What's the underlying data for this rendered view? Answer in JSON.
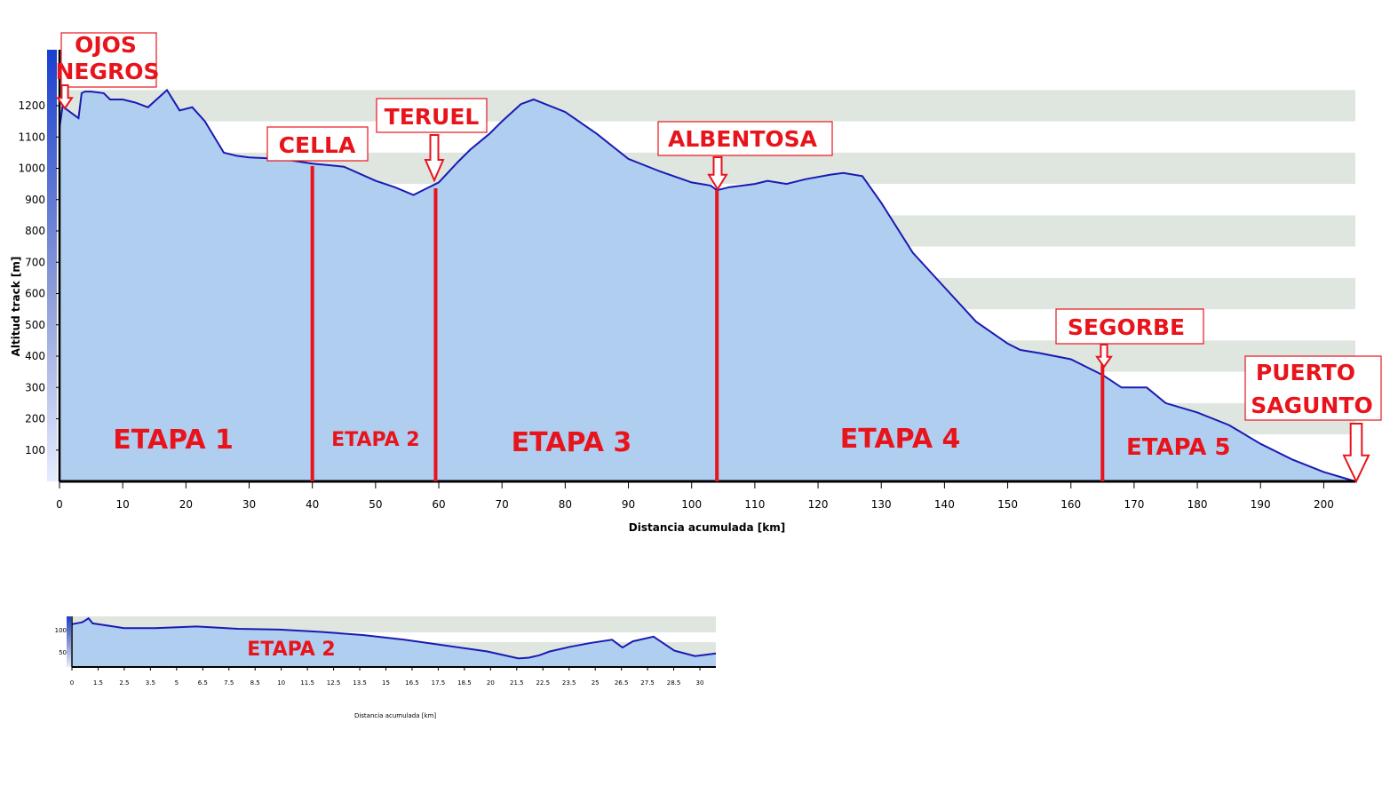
{
  "chart_data": [
    {
      "type": "area",
      "xlabel": "Distancia acumulada [km]",
      "ylabel": "Altitud track [m]",
      "xlim": [
        0,
        205
      ],
      "ylim": [
        0,
        1300
      ],
      "xticks": [
        0,
        10,
        20,
        30,
        40,
        50,
        60,
        70,
        80,
        90,
        100,
        110,
        120,
        130,
        140,
        150,
        160,
        170,
        180,
        190,
        200
      ],
      "yticks": [
        100,
        200,
        300,
        400,
        500,
        600,
        700,
        800,
        900,
        1000,
        1100,
        1200
      ],
      "x": [
        0,
        0.5,
        1,
        2,
        3,
        3.5,
        4,
        5,
        7,
        8,
        10,
        12,
        14,
        17,
        19,
        21,
        23,
        26,
        28,
        30,
        35,
        40,
        45,
        50,
        53,
        56,
        58,
        60,
        63,
        65,
        68,
        70,
        73,
        75,
        80,
        85,
        90,
        95,
        100,
        103,
        104,
        106,
        110,
        112,
        115,
        118,
        122,
        124,
        127,
        130,
        135,
        140,
        145,
        150,
        152,
        155,
        160,
        163,
        165,
        168,
        171,
        172,
        175,
        180,
        185,
        190,
        195,
        200,
        205
      ],
      "y": [
        1130,
        1200,
        1190,
        1175,
        1160,
        1240,
        1245,
        1245,
        1240,
        1220,
        1220,
        1210,
        1195,
        1250,
        1185,
        1195,
        1150,
        1050,
        1040,
        1035,
        1030,
        1015,
        1005,
        960,
        940,
        915,
        935,
        955,
        1020,
        1060,
        1110,
        1150,
        1205,
        1220,
        1180,
        1110,
        1030,
        990,
        955,
        945,
        930,
        940,
        950,
        960,
        950,
        965,
        980,
        985,
        975,
        890,
        730,
        620,
        510,
        440,
        420,
        410,
        390,
        360,
        340,
        300,
        300,
        300,
        250,
        220,
        180,
        120,
        70,
        30,
        0
      ],
      "series": [
        {
          "name": "ETAPA 1",
          "x": 18
        },
        {
          "name": "ETAPA 2",
          "x": 50
        },
        {
          "name": "ETAPA 3",
          "x": 81
        },
        {
          "name": "ETAPA 4",
          "x": 133
        },
        {
          "name": "ETAPA 5",
          "x": 177
        }
      ],
      "stage_boundaries_km": [
        40,
        59.5,
        104,
        165
      ],
      "annotations": [
        {
          "text": "OJOS NEGROS",
          "line1": "OJOS",
          "line2": "NEGROS",
          "km": 0.5
        },
        {
          "text": "CELLA",
          "km": 40
        },
        {
          "text": "TERUEL",
          "km": 59.5
        },
        {
          "text": "ALBENTOSA",
          "km": 104
        },
        {
          "text": "SEGORBE",
          "km": 165
        },
        {
          "text": "PUERTO SAGUNTO",
          "line1": "PUERTO",
          "line2": "SAGUNTO",
          "km": 205
        }
      ],
      "grid": true,
      "colors": {
        "fill": "#b0cef0",
        "line": "#1a1ab4",
        "stage_line": "#e8141c",
        "label": "#e8141c",
        "band": "#dfe6df"
      }
    },
    {
      "type": "area",
      "title": "ETAPA 2",
      "xlabel": "Distancia acumulada [km]",
      "xticks": [
        "0",
        "1.5",
        "2.5",
        "3.5",
        "5",
        "6.5",
        "7.5",
        "8.5",
        "10",
        "11.5",
        "12.5",
        "13.5",
        "15",
        "16.5",
        "17.5",
        "18.5",
        "20",
        "21.5",
        "22.5",
        "23.5",
        "25",
        "26.5",
        "27.5",
        "28.5",
        "30"
      ],
      "yticks": [
        "100",
        "50"
      ],
      "xlim": [
        0,
        31
      ],
      "ylim": [
        0,
        130
      ],
      "x": [
        0,
        0.5,
        0.8,
        1,
        1.5,
        2.5,
        4,
        6,
        8,
        10,
        12,
        14,
        16,
        18,
        20,
        21.5,
        22,
        22.5,
        23,
        24,
        25,
        26,
        26.5,
        27,
        28,
        28.5,
        29,
        30,
        31
      ],
      "y": [
        110,
        115,
        125,
        112,
        108,
        100,
        100,
        104,
        98,
        96,
        90,
        82,
        70,
        55,
        40,
        22,
        24,
        30,
        40,
        52,
        62,
        70,
        50,
        66,
        78,
        60,
        42,
        28,
        35
      ]
    }
  ]
}
